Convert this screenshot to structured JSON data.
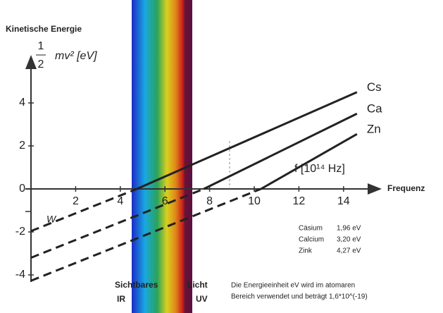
{
  "chart_data": {
    "type": "line",
    "title": "Kinetische Energie",
    "y_label": {
      "numerator": "1",
      "denominator": "2",
      "text": "mv² [eV]"
    },
    "x_label": "f [10¹⁴ Hz]",
    "x_axis_name": "Frequenz",
    "xlim": [
      0,
      15
    ],
    "ylim": [
      -4.5,
      5.5
    ],
    "xticks": [
      2,
      4,
      6,
      8,
      10,
      12,
      14
    ],
    "yticks": [
      -4,
      -2,
      0,
      2,
      4
    ],
    "series": [
      {
        "name": "Cs",
        "color": "#222222",
        "x": [
          0,
          4.74,
          14.6
        ],
        "values": [
          -1.96,
          0,
          4.5
        ]
      },
      {
        "name": "Ca",
        "color": "#222222",
        "x": [
          0,
          7.74,
          14.6
        ],
        "values": [
          -3.2,
          0,
          3.5
        ]
      },
      {
        "name": "Zn",
        "color": "#222222",
        "x": [
          0,
          10.3,
          14.6
        ],
        "values": [
          -4.27,
          0,
          2.55
        ]
      }
    ],
    "work_function_label": "W",
    "spectrum": {
      "label_left": "Sichtbares ",
      "label_right": "Licht",
      "ir": "IR",
      "uv": "UV"
    },
    "table": [
      {
        "name": "Cäsium",
        "value": "1,96 eV"
      },
      {
        "name": "Calcium",
        "value": "3,20 eV"
      },
      {
        "name": "Zink",
        "value": "4,27 eV"
      }
    ],
    "note": [
      "Die Energieeinheit eV wird im atomaren",
      "Bereich verwendet und beträgt 1,6*10^(-19)"
    ]
  }
}
